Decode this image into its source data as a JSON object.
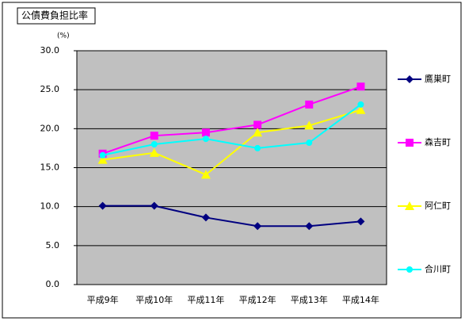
{
  "chart_data": {
    "type": "line",
    "title": "公債費負担比率",
    "y_unit": "(%)",
    "categories": [
      "平成9年",
      "平成10年",
      "平成11年",
      "平成12年",
      "平成13年",
      "平成14年"
    ],
    "series": [
      {
        "name": "鷹巣町",
        "color": "#000080",
        "marker": "diamond",
        "values": [
          10.1,
          10.1,
          8.6,
          7.5,
          7.5,
          8.1
        ]
      },
      {
        "name": "森吉町",
        "color": "#ff00ff",
        "marker": "square",
        "values": [
          16.8,
          19.1,
          19.5,
          20.5,
          23.1,
          25.4
        ]
      },
      {
        "name": "阿仁町",
        "color": "#ffff00",
        "marker": "triangle",
        "values": [
          16.0,
          16.9,
          14.1,
          19.5,
          20.4,
          22.4
        ]
      },
      {
        "name": "合川町",
        "color": "#00ffff",
        "marker": "circle",
        "values": [
          16.6,
          18.0,
          18.7,
          17.5,
          18.2,
          23.1
        ]
      }
    ],
    "ylim": [
      0,
      30
    ],
    "yticks": [
      {
        "value": 0,
        "label": "0.0"
      },
      {
        "value": 5,
        "label": "5.0"
      },
      {
        "value": 10,
        "label": "10.0"
      },
      {
        "value": 15,
        "label": "15.0"
      },
      {
        "value": 20,
        "label": "20.0"
      },
      {
        "value": 25,
        "label": "25.0"
      },
      {
        "value": 30,
        "label": "30.0"
      }
    ],
    "grid": true,
    "legend": "right"
  }
}
